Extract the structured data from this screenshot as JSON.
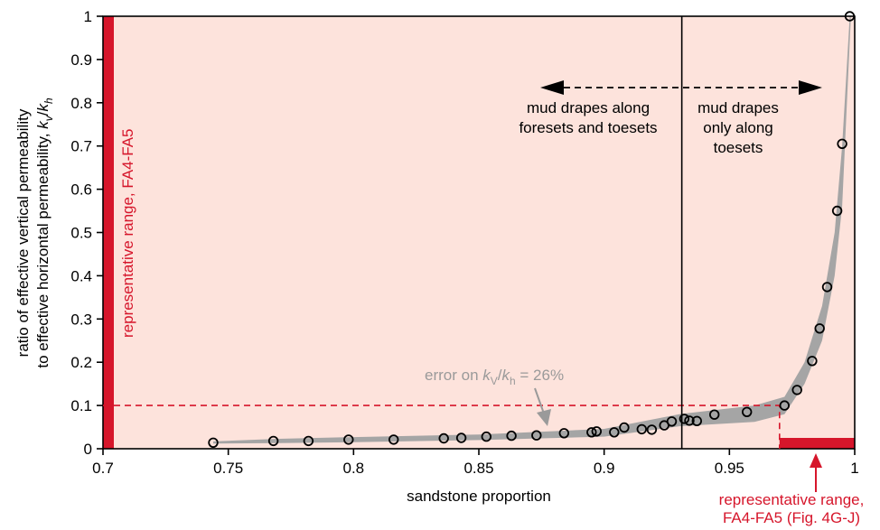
{
  "chart_data": {
    "type": "scatter",
    "xlabel": "sandstone proportion",
    "ylabel_line1": "ratio of effective vertical permeability",
    "ylabel_line2_main": "to effective horizontal permeability, ",
    "ylabel_k": "k",
    "ylabel_sub_v": "v",
    "ylabel_slash": "/",
    "ylabel_sub_h": "h",
    "xlim": [
      0.7,
      1.0
    ],
    "ylim": [
      0,
      1.0
    ],
    "xticks": [
      0.7,
      0.75,
      0.8,
      0.85,
      0.9,
      0.95,
      1
    ],
    "xtick_labels": [
      "0.7",
      "0.75",
      "0.8",
      "0.85",
      "0.9",
      "0.95",
      "1"
    ],
    "yticks": [
      0,
      0.1,
      0.2,
      0.3,
      0.4,
      0.5,
      0.6,
      0.7,
      0.8,
      0.9,
      1
    ],
    "ytick_labels": [
      "0",
      "0.1",
      "0.2",
      "0.3",
      "0.4",
      "0.5",
      "0.6",
      "0.7",
      "0.8",
      "0.9",
      "1"
    ],
    "points": [
      [
        0.744,
        0.014
      ],
      [
        0.768,
        0.018
      ],
      [
        0.782,
        0.018
      ],
      [
        0.798,
        0.021
      ],
      [
        0.816,
        0.021
      ],
      [
        0.836,
        0.024
      ],
      [
        0.843,
        0.025
      ],
      [
        0.853,
        0.028
      ],
      [
        0.863,
        0.03
      ],
      [
        0.873,
        0.031
      ],
      [
        0.884,
        0.036
      ],
      [
        0.895,
        0.038
      ],
      [
        0.897,
        0.04
      ],
      [
        0.904,
        0.038
      ],
      [
        0.908,
        0.049
      ],
      [
        0.915,
        0.045
      ],
      [
        0.919,
        0.044
      ],
      [
        0.924,
        0.054
      ],
      [
        0.927,
        0.063
      ],
      [
        0.932,
        0.069
      ],
      [
        0.934,
        0.065
      ],
      [
        0.937,
        0.064
      ],
      [
        0.944,
        0.079
      ],
      [
        0.957,
        0.085
      ],
      [
        0.972,
        0.1
      ],
      [
        0.977,
        0.136
      ],
      [
        0.983,
        0.203
      ],
      [
        0.986,
        0.278
      ],
      [
        0.989,
        0.374
      ],
      [
        0.993,
        0.55
      ],
      [
        0.995,
        0.705
      ],
      [
        0.998,
        1.0
      ]
    ],
    "error_band": {
      "upper": [
        [
          0.744,
          0.017
        ],
        [
          0.77,
          0.023
        ],
        [
          0.8,
          0.027
        ],
        [
          0.85,
          0.033
        ],
        [
          0.9,
          0.046
        ],
        [
          0.93,
          0.08
        ],
        [
          0.96,
          0.1
        ],
        [
          0.972,
          0.12
        ],
        [
          0.98,
          0.2
        ],
        [
          0.987,
          0.33
        ],
        [
          0.992,
          0.5
        ],
        [
          0.995,
          0.7
        ],
        [
          0.998,
          1.0
        ]
      ],
      "lower": [
        [
          0.744,
          0.012
        ],
        [
          0.77,
          0.013
        ],
        [
          0.8,
          0.015
        ],
        [
          0.85,
          0.02
        ],
        [
          0.9,
          0.028
        ],
        [
          0.93,
          0.052
        ],
        [
          0.96,
          0.062
        ],
        [
          0.972,
          0.08
        ],
        [
          0.98,
          0.15
        ],
        [
          0.987,
          0.25
        ],
        [
          0.992,
          0.4
        ],
        [
          0.995,
          0.56
        ],
        [
          0.9985,
          1.0
        ]
      ]
    },
    "vertical_line_x": 0.931,
    "threshold_y": 0.1,
    "threshold_x": 0.97,
    "representative_range_y": [
      0,
      0.1
    ],
    "representative_range_x": [
      0.97,
      1.0
    ],
    "annotations": {
      "left_region_line1": "mud drapes along",
      "left_region_line2": "foresets and toesets",
      "right_region_line1": "mud drapes",
      "right_region_line2": "only along",
      "right_region_line3": "toesets",
      "vertical_label": "representative range, FA4-FA5",
      "bottom_label_line1": "representative range,",
      "bottom_label_line2": "FA4-FA5 (Fig. 4G-J)",
      "error_label_prefix": "error on ",
      "error_label_k": "k",
      "error_label_sub_v": "V",
      "error_label_slash": "/",
      "error_label_sub_h": "h",
      "error_label_suffix": " = 26%"
    },
    "colors": {
      "shade": "#fde3dc",
      "red": "#d6162b",
      "band": "#a5a5a5",
      "gray_text": "#9a9a9a",
      "axis": "#000000"
    }
  }
}
